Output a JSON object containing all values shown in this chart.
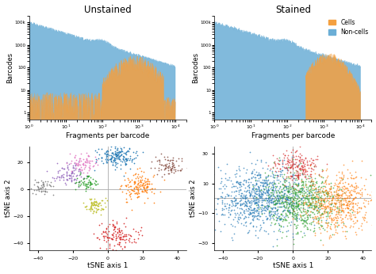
{
  "title_unstained": "Unstained",
  "title_stained": "Stained",
  "xlabel_top": "Fragments per barcode",
  "ylabel_top": "Barcodes",
  "xlabel_bot": "tSNE axis 1",
  "ylabel_bot": "tSNE axis 2",
  "color_cells": "#F4A040",
  "color_noncells": "#6BAED6",
  "legend_cells": "Cells",
  "legend_noncells": "Non-cells",
  "tsne_colors_left": [
    "#808080",
    "#9467bd",
    "#e377c2",
    "#2ca02c",
    "#bcbd22",
    "#1f77b4",
    "#ff7f0e",
    "#8c564b",
    "#d62728"
  ],
  "tsne_colors_right": [
    "#1f77b4",
    "#2ca02c",
    "#d62728",
    "#ff7f0e"
  ],
  "background": "#ffffff"
}
